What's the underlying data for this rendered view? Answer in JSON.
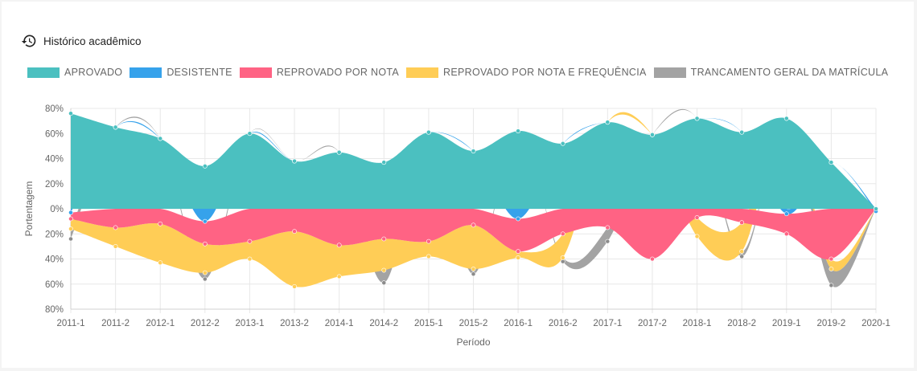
{
  "header": {
    "title": "Histórico acadêmico",
    "icon": "history-icon"
  },
  "chart_data": {
    "type": "area",
    "title": "",
    "xlabel": "Período",
    "ylabel": "Portentagem",
    "ylim": [
      -80,
      80
    ],
    "yticks": [
      80,
      60,
      40,
      20,
      0,
      -20,
      -40,
      -60,
      -80
    ],
    "ytick_labels": [
      "80%",
      "60%",
      "40%",
      "20%",
      "0%",
      "20%",
      "40%",
      "60%",
      "80%"
    ],
    "grid": true,
    "legend_position": "top",
    "categories": [
      "2011-1",
      "2011-2",
      "2012-1",
      "2012-2",
      "2013-1",
      "2013-2",
      "2014-1",
      "2014-2",
      "2015-1",
      "2015-2",
      "2016-1",
      "2016-2",
      "2017-1",
      "2017-2",
      "2018-1",
      "2018-2",
      "2019-1",
      "2019-2",
      "2020-1"
    ],
    "series": [
      {
        "name": "APROVADO",
        "color": "#4bc0c0",
        "values": [
          76,
          65,
          56,
          34,
          60,
          38,
          45,
          37,
          61,
          46,
          62,
          52,
          69,
          59,
          72,
          61,
          72,
          37,
          0
        ]
      },
      {
        "name": "DESISTENTE",
        "color": "#36a2eb",
        "values": [
          -3,
          0,
          0,
          -10,
          0,
          0,
          0,
          0,
          0,
          0,
          -8,
          0,
          0,
          0,
          0,
          0,
          -4,
          0,
          -2
        ]
      },
      {
        "name": "REPROVADO POR NOTA",
        "color": "#ff6384",
        "values": [
          -5,
          -15,
          -12,
          -18,
          -26,
          -18,
          -29,
          -24,
          -26,
          -13,
          -26,
          -20,
          -15,
          -40,
          -7,
          -11,
          -16,
          -40,
          0
        ]
      },
      {
        "name": "REPROVADO POR NOTA E FREQUÊNCIA",
        "color": "#ffcd56",
        "values": [
          -8,
          -15,
          -31,
          -23,
          -14,
          -44,
          -25,
          -25,
          -12,
          -35,
          -5,
          -19,
          0,
          0,
          -15,
          -23,
          0,
          -8,
          0
        ]
      },
      {
        "name": "TRANCAMENTO GERAL DA MATRÍCULA",
        "color": "#a3a3a3",
        "values": [
          -8,
          0,
          0,
          -5,
          0,
          0,
          0,
          -10,
          0,
          -4,
          0,
          -3,
          -11,
          0,
          0,
          -4,
          0,
          -13,
          0
        ]
      }
    ]
  }
}
